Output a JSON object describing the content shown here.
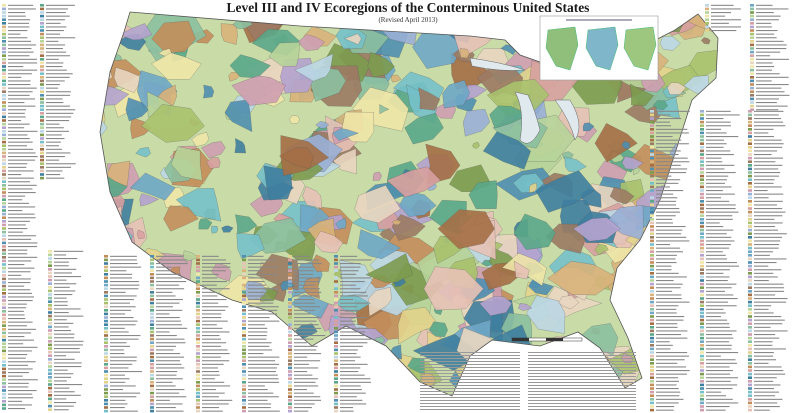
{
  "header": {
    "title": "Level III and IV Ecoregions of the Conterminous United States",
    "subtitle": "(Revised  April 2013)"
  }
}
